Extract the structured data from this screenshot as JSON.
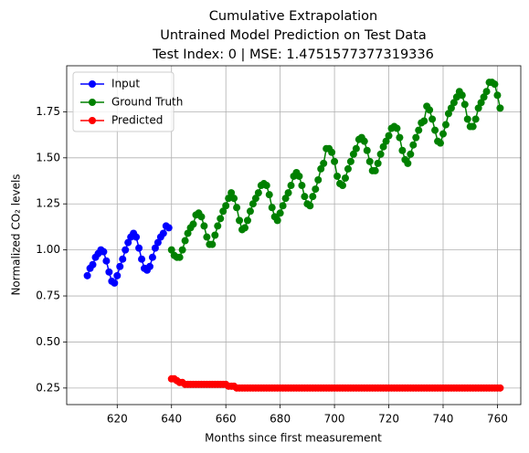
{
  "chart_data": {
    "type": "line",
    "title": "Cumulative Extrapolation",
    "subtitle": [
      "Untrained Model Prediction on Test Data",
      "Test Index: 0 | MSE: 1.4751577377319336"
    ],
    "x_label": "Months since first measurement",
    "y_label": "Normalized CO₂ levels",
    "xlim": [
      601.4,
      768.6
    ],
    "ylim": [
      0.16,
      2.0
    ],
    "xticks": [
      620,
      640,
      660,
      680,
      700,
      720,
      740,
      760
    ],
    "yticks": [
      0.25,
      {
        "value": 0.5,
        "label": "0.50"
      },
      0.75,
      {
        "value": 1.0,
        "label": "1.00"
      },
      1.25,
      {
        "value": 1.5,
        "label": "1.50"
      },
      1.75
    ],
    "grid": true,
    "legend": "upper left",
    "series": [
      {
        "name": "Input",
        "color": "#0000ff",
        "x": [
          609,
          610,
          611,
          612,
          613,
          614,
          615,
          616,
          617,
          618,
          619,
          620,
          621,
          622,
          623,
          624,
          625,
          626,
          627,
          628,
          629,
          630,
          631,
          632,
          633,
          634,
          635,
          636,
          637,
          638,
          639
        ],
        "values": [
          0.86,
          0.9,
          0.92,
          0.96,
          0.98,
          1.0,
          0.99,
          0.94,
          0.88,
          0.83,
          0.82,
          0.86,
          0.91,
          0.95,
          1.0,
          1.04,
          1.07,
          1.09,
          1.07,
          1.01,
          0.95,
          0.9,
          0.89,
          0.91,
          0.96,
          1.01,
          1.04,
          1.07,
          1.09,
          1.13,
          1.12
        ]
      },
      {
        "name": "Ground Truth",
        "color": "#008000",
        "x": [
          640,
          641,
          642,
          643,
          644,
          645,
          646,
          647,
          648,
          649,
          650,
          651,
          652,
          653,
          654,
          655,
          656,
          657,
          658,
          659,
          660,
          661,
          662,
          663,
          664,
          665,
          666,
          667,
          668,
          669,
          670,
          671,
          672,
          673,
          674,
          675,
          676,
          677,
          678,
          679,
          680,
          681,
          682,
          683,
          684,
          685,
          686,
          687,
          688,
          689,
          690,
          691,
          692,
          693,
          694,
          695,
          696,
          697,
          698,
          699,
          700,
          701,
          702,
          703,
          704,
          705,
          706,
          707,
          708,
          709,
          710,
          711,
          712,
          713,
          714,
          715,
          716,
          717,
          718,
          719,
          720,
          721,
          722,
          723,
          724,
          725,
          726,
          727,
          728,
          729,
          730,
          731,
          732,
          733,
          734,
          735,
          736,
          737,
          738,
          739,
          740,
          741,
          742,
          743,
          744,
          745,
          746,
          747,
          748,
          749,
          750,
          751,
          752,
          753,
          754,
          755,
          756,
          757,
          758,
          759,
          760,
          761
        ],
        "values": [
          1.0,
          0.97,
          0.96,
          0.96,
          1.0,
          1.05,
          1.09,
          1.12,
          1.14,
          1.19,
          1.2,
          1.18,
          1.13,
          1.07,
          1.03,
          1.03,
          1.08,
          1.13,
          1.17,
          1.21,
          1.24,
          1.28,
          1.31,
          1.28,
          1.23,
          1.16,
          1.11,
          1.12,
          1.16,
          1.21,
          1.25,
          1.28,
          1.31,
          1.35,
          1.36,
          1.35,
          1.3,
          1.23,
          1.18,
          1.16,
          1.2,
          1.24,
          1.28,
          1.31,
          1.35,
          1.4,
          1.42,
          1.4,
          1.35,
          1.29,
          1.25,
          1.24,
          1.29,
          1.33,
          1.38,
          1.44,
          1.47,
          1.55,
          1.55,
          1.53,
          1.48,
          1.4,
          1.36,
          1.35,
          1.39,
          1.44,
          1.48,
          1.52,
          1.55,
          1.6,
          1.61,
          1.59,
          1.54,
          1.48,
          1.43,
          1.43,
          1.47,
          1.52,
          1.56,
          1.59,
          1.62,
          1.66,
          1.67,
          1.66,
          1.61,
          1.54,
          1.49,
          1.47,
          1.52,
          1.57,
          1.61,
          1.65,
          1.69,
          1.7,
          1.78,
          1.76,
          1.71,
          1.65,
          1.59,
          1.58,
          1.63,
          1.68,
          1.74,
          1.77,
          1.8,
          1.83,
          1.86,
          1.84,
          1.79,
          1.71,
          1.67,
          1.67,
          1.71,
          1.77,
          1.8,
          1.83,
          1.86,
          1.91,
          1.91,
          1.9,
          1.84,
          1.77
        ]
      },
      {
        "name": "Predicted",
        "color": "#ff0000",
        "x": [
          640,
          641,
          642,
          643,
          644,
          645,
          646,
          647,
          648,
          649,
          650,
          651,
          652,
          653,
          654,
          655,
          656,
          657,
          658,
          659,
          660,
          661,
          662,
          663,
          664,
          665,
          666,
          667,
          668,
          669,
          670,
          671,
          672,
          673,
          674,
          675,
          676,
          677,
          678,
          679,
          680,
          681,
          682,
          683,
          684,
          685,
          686,
          687,
          688,
          689,
          690,
          691,
          692,
          693,
          694,
          695,
          696,
          697,
          698,
          699,
          700,
          701,
          702,
          703,
          704,
          705,
          706,
          707,
          708,
          709,
          710,
          711,
          712,
          713,
          714,
          715,
          716,
          717,
          718,
          719,
          720,
          721,
          722,
          723,
          724,
          725,
          726,
          727,
          728,
          729,
          730,
          731,
          732,
          733,
          734,
          735,
          736,
          737,
          738,
          739,
          740,
          741,
          742,
          743,
          744,
          745,
          746,
          747,
          748,
          749,
          750,
          751,
          752,
          753,
          754,
          755,
          756,
          757,
          758,
          759,
          760,
          761
        ],
        "values": [
          0.3,
          0.3,
          0.29,
          0.28,
          0.28,
          0.27,
          0.27,
          0.27,
          0.27,
          0.27,
          0.27,
          0.27,
          0.27,
          0.27,
          0.27,
          0.27,
          0.27,
          0.27,
          0.27,
          0.27,
          0.27,
          0.26,
          0.26,
          0.26,
          0.25,
          0.25,
          0.25,
          0.25,
          0.25,
          0.25,
          0.25,
          0.25,
          0.25,
          0.25,
          0.25,
          0.25,
          0.25,
          0.25,
          0.25,
          0.25,
          0.25,
          0.25,
          0.25,
          0.25,
          0.25,
          0.25,
          0.25,
          0.25,
          0.25,
          0.25,
          0.25,
          0.25,
          0.25,
          0.25,
          0.25,
          0.25,
          0.25,
          0.25,
          0.25,
          0.25,
          0.25,
          0.25,
          0.25,
          0.25,
          0.25,
          0.25,
          0.25,
          0.25,
          0.25,
          0.25,
          0.25,
          0.25,
          0.25,
          0.25,
          0.25,
          0.25,
          0.25,
          0.25,
          0.25,
          0.25,
          0.25,
          0.25,
          0.25,
          0.25,
          0.25,
          0.25,
          0.25,
          0.25,
          0.25,
          0.25,
          0.25,
          0.25,
          0.25,
          0.25,
          0.25,
          0.25,
          0.25,
          0.25,
          0.25,
          0.25,
          0.25,
          0.25,
          0.25,
          0.25,
          0.25,
          0.25,
          0.25,
          0.25,
          0.25,
          0.25,
          0.25,
          0.25,
          0.25,
          0.25,
          0.25,
          0.25,
          0.25,
          0.25,
          0.25,
          0.25,
          0.25,
          0.25
        ]
      }
    ]
  }
}
